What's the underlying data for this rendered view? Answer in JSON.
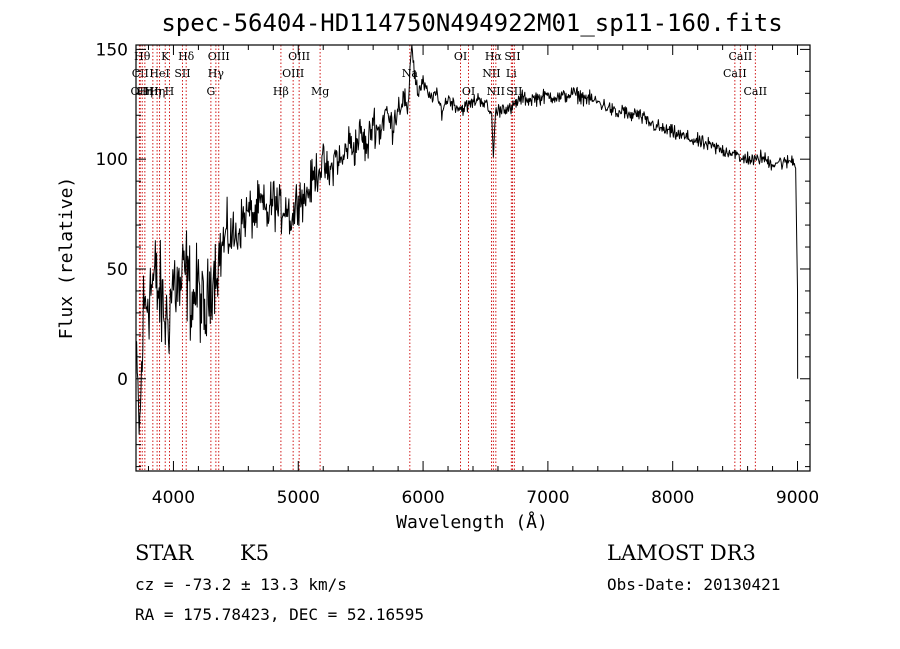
{
  "chart_data": {
    "type": "line",
    "title": "spec-56404-HD114750N494922M01_sp11-160.fits",
    "xlabel": "Wavelength (Å)",
    "ylabel": "Flux (relative)",
    "xlim": [
      3700,
      9100
    ],
    "ylim": [
      -42,
      152
    ],
    "xticks": [
      {
        "value": 4000,
        "label": "4000"
      },
      {
        "value": 5000,
        "label": "5000"
      },
      {
        "value": 6000,
        "label": "6000"
      },
      {
        "value": 7000,
        "label": "7000"
      },
      {
        "value": 8000,
        "label": "8000"
      },
      {
        "value": 9000,
        "label": "9000"
      }
    ],
    "yticks": [
      {
        "value": 0,
        "label": "0"
      },
      {
        "value": 50,
        "label": "50"
      },
      {
        "value": 100,
        "label": "100"
      },
      {
        "value": 150,
        "label": "150"
      }
    ],
    "x_minor_step": 200,
    "y_minor_step": 10,
    "series": [
      {
        "name": "flux",
        "color": "#000000",
        "x": [
          3700,
          3730,
          3760,
          3800,
          3850,
          3900,
          3950,
          4000,
          4050,
          4100,
          4150,
          4200,
          4250,
          4300,
          4350,
          4400,
          4450,
          4500,
          4550,
          4600,
          4650,
          4700,
          4750,
          4800,
          4850,
          4900,
          4950,
          5000,
          5050,
          5100,
          5150,
          5200,
          5250,
          5300,
          5350,
          5400,
          5450,
          5500,
          5550,
          5600,
          5650,
          5700,
          5750,
          5800,
          5850,
          5880,
          5895,
          5910,
          5930,
          5960,
          6000,
          6050,
          6100,
          6150,
          6200,
          6250,
          6300,
          6350,
          6400,
          6450,
          6500,
          6550,
          6563,
          6580,
          6600,
          6650,
          6700,
          6750,
          6800,
          6850,
          6900,
          6950,
          7000,
          7100,
          7200,
          7300,
          7400,
          7500,
          7560,
          7600,
          7650,
          7700,
          7800,
          7900,
          8000,
          8100,
          8200,
          8300,
          8400,
          8500,
          8542,
          8580,
          8662,
          8700,
          8800,
          8850,
          8900,
          8960,
          8985,
          9000,
          9001
        ],
        "y": [
          10,
          -25,
          30,
          40,
          45,
          35,
          25,
          45,
          40,
          50,
          35,
          42,
          25,
          45,
          52,
          62,
          66,
          64,
          72,
          76,
          74,
          80,
          74,
          82,
          76,
          80,
          72,
          84,
          82,
          88,
          95,
          98,
          92,
          102,
          98,
          108,
          105,
          112,
          104,
          118,
          112,
          122,
          115,
          124,
          128,
          118,
          142,
          152,
          140,
          130,
          135,
          128,
          130,
          122,
          128,
          125,
          123,
          124,
          126,
          128,
          125,
          120,
          101,
          121,
          122,
          124,
          122,
          126,
          128,
          127,
          128,
          128,
          129,
          128,
          130,
          128,
          126,
          123,
          120,
          123,
          119,
          121,
          117,
          114,
          112,
          110,
          108,
          106,
          104,
          103,
          99,
          101,
          99,
          101,
          98,
          99,
          98,
          100,
          96,
          40,
          0
        ],
        "jitter": [
          12,
          22,
          22,
          22,
          22,
          22,
          20,
          20,
          20,
          20,
          19,
          18,
          18,
          16,
          15,
          13,
          12,
          11,
          10,
          10,
          10,
          10,
          10,
          10,
          10,
          10,
          10,
          9,
          9,
          9,
          9,
          8,
          8,
          8,
          8,
          8,
          8,
          8,
          8,
          8,
          8,
          7,
          7,
          6,
          6,
          6,
          0,
          0,
          6,
          4,
          3,
          3,
          3,
          3,
          3,
          3,
          3,
          3,
          3,
          3,
          3,
          3,
          0,
          3,
          3,
          3,
          3,
          3,
          3,
          3,
          3,
          3,
          3,
          3,
          3,
          3,
          3,
          3,
          3,
          3,
          3,
          3,
          3,
          3,
          3,
          3,
          3,
          3,
          3,
          3,
          3,
          3,
          3,
          3,
          3,
          3,
          3,
          3,
          2,
          0,
          0
        ]
      }
    ],
    "spectral_lines": [
      {
        "wavelength": 3727,
        "label": "OII",
        "row": 2
      },
      {
        "wavelength": 3734,
        "label": "CII",
        "row": 1
      },
      {
        "wavelength": 3750,
        "label": "Hθ",
        "row": 0
      },
      {
        "wavelength": 3771,
        "label": "Hη",
        "row": 2
      },
      {
        "wavelength": 3835,
        "label": "Hη",
        "row": 2
      },
      {
        "wavelength": 3869,
        "label": "Hη",
        "row": 2
      },
      {
        "wavelength": 3889,
        "label": "HeI",
        "row": 1
      },
      {
        "wavelength": 3934,
        "label": "K",
        "row": 0
      },
      {
        "wavelength": 3968,
        "label": "H",
        "row": 2
      },
      {
        "wavelength": 4072,
        "label": "SII",
        "row": 1
      },
      {
        "wavelength": 4102,
        "label": "Hδ",
        "row": 0
      },
      {
        "wavelength": 4300,
        "label": "G",
        "row": 2
      },
      {
        "wavelength": 4340,
        "label": "Hγ",
        "row": 1
      },
      {
        "wavelength": 4363,
        "label": "OIII",
        "row": 0
      },
      {
        "wavelength": 4861,
        "label": "Hβ",
        "row": 2
      },
      {
        "wavelength": 4959,
        "label": "OIII",
        "row": 1
      },
      {
        "wavelength": 5007,
        "label": "OIII",
        "row": 0
      },
      {
        "wavelength": 5175,
        "label": "Mg",
        "row": 2
      },
      {
        "wavelength": 5894,
        "label": "Na",
        "row": 1
      },
      {
        "wavelength": 6300,
        "label": "OI",
        "row": 0
      },
      {
        "wavelength": 6364,
        "label": "OI",
        "row": 2
      },
      {
        "wavelength": 6548,
        "label": "NII",
        "row": 1
      },
      {
        "wavelength": 6563,
        "label": "Hα",
        "row": 0
      },
      {
        "wavelength": 6583,
        "label": "NII",
        "row": 2
      },
      {
        "wavelength": 6707,
        "label": "Li",
        "row": 1
      },
      {
        "wavelength": 6716,
        "label": "SII",
        "row": 0
      },
      {
        "wavelength": 6731,
        "label": "SII",
        "row": 2
      },
      {
        "wavelength": 8498,
        "label": "CaII",
        "row": 1
      },
      {
        "wavelength": 8542,
        "label": "CaII",
        "row": 0
      },
      {
        "wavelength": 8662,
        "label": "CaII",
        "row": 2
      }
    ],
    "line_color": "#cc0000"
  },
  "info": {
    "object_class": "STAR",
    "subclass": "K5",
    "survey": "LAMOST DR3",
    "redshift": "cz = -73.2 ± 13.3 km/s",
    "obs_date": "Obs-Date: 20130421",
    "coords": "RA = 175.78423, DEC =  52.16595"
  }
}
